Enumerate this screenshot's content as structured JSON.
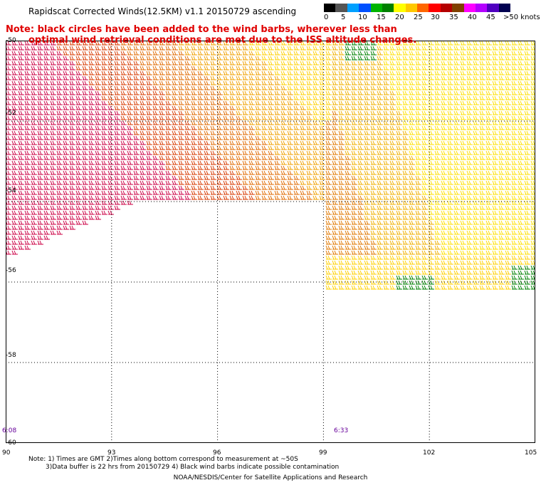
{
  "title": "Rapidscat Corrected Winds(12.5KM) v1.1 20150729 ascending",
  "note": {
    "line1": "Note: black circles have been added to the wind barbs, wherever less than",
    "line2": "optimal wind retrieval conditions are met due to the ISS altitude changes."
  },
  "legend": {
    "colors": [
      "#000000",
      "#555555",
      "#00a0ff",
      "#0050ff",
      "#00b400",
      "#008000",
      "#ffff00",
      "#ffc800",
      "#ff6600",
      "#ff0000",
      "#b40000",
      "#804000",
      "#ff00ff",
      "#b400ff",
      "#5000c0",
      "#000050"
    ],
    "labels": [
      "0",
      "5",
      "10",
      "15",
      "20",
      "25",
      "30",
      "35",
      "40",
      "45",
      ">50 knots"
    ]
  },
  "map": {
    "y_labels": [
      "-50",
      "-52",
      "-54",
      "-56",
      "-58",
      "-60"
    ],
    "x_labels": [
      "90",
      "93",
      "96",
      "99",
      "102",
      "105"
    ],
    "lat_range": [
      -60,
      -50
    ],
    "lon_range": [
      90,
      105
    ],
    "pass_times": [
      "6:08",
      "6:33"
    ]
  },
  "footer": {
    "line1": "Note: 1) Times are GMT 2)Times along bottom correspond to measurement at ~50S",
    "line2": "3)Data buffer is 22 hrs from 20150729 4) Black wind barbs indicate possible contamination",
    "line3": "NOAA/NESDIS/Center for Satellite Applications and Research"
  }
}
